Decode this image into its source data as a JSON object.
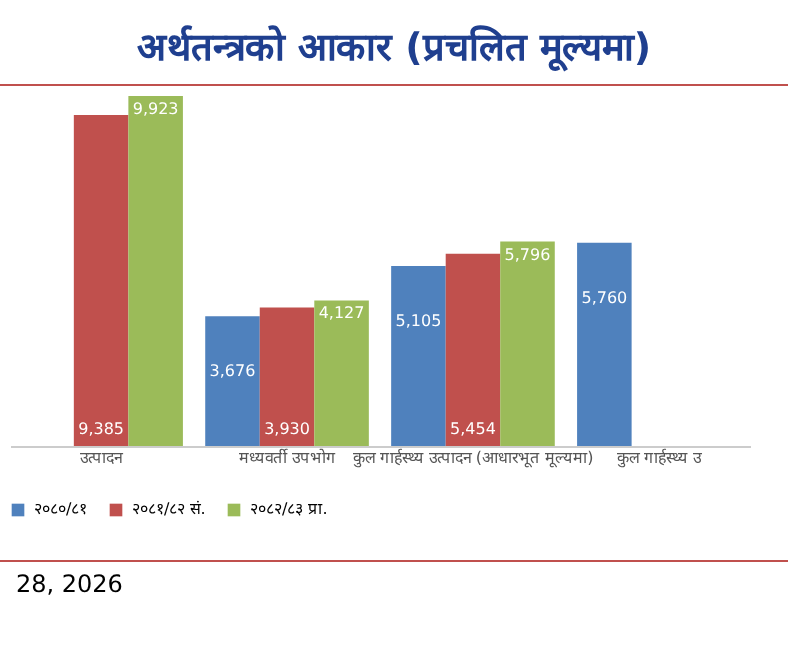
{
  "chart_data": {
    "type": "bar",
    "title": "अर्थतन्त्रको आकार (प्रचलित मूल्यमा)",
    "categories": [
      "उत्पादन",
      "मध्यवर्ती उपभोग",
      "कुल गार्हस्थ्य उत्पादन (आधारभूत मूल्यमा)",
      "कुल गार्हस्थ्य उ"
    ],
    "series": [
      {
        "name": "२०८०/८१",
        "color": "#4f81bd",
        "values": [
          null,
          3676,
          5105,
          5760
        ],
        "value_labels": [
          null,
          "3,676",
          "5,105",
          "5,760"
        ]
      },
      {
        "name": "२०८१/८२ सं.",
        "color": "#c0504d",
        "values": [
          9385,
          3930,
          5454,
          null
        ],
        "value_labels": [
          "9,385",
          "3,930",
          "5,454",
          null
        ]
      },
      {
        "name": "२०८२/८३ प्रा.",
        "color": "#9bbb59",
        "values": [
          9923,
          4127,
          5796,
          null
        ],
        "value_labels": [
          "9,923",
          "4,127",
          "5,796",
          null
        ]
      }
    ],
    "legend": "bottom",
    "annotations": [
      "28, 2026"
    ]
  }
}
